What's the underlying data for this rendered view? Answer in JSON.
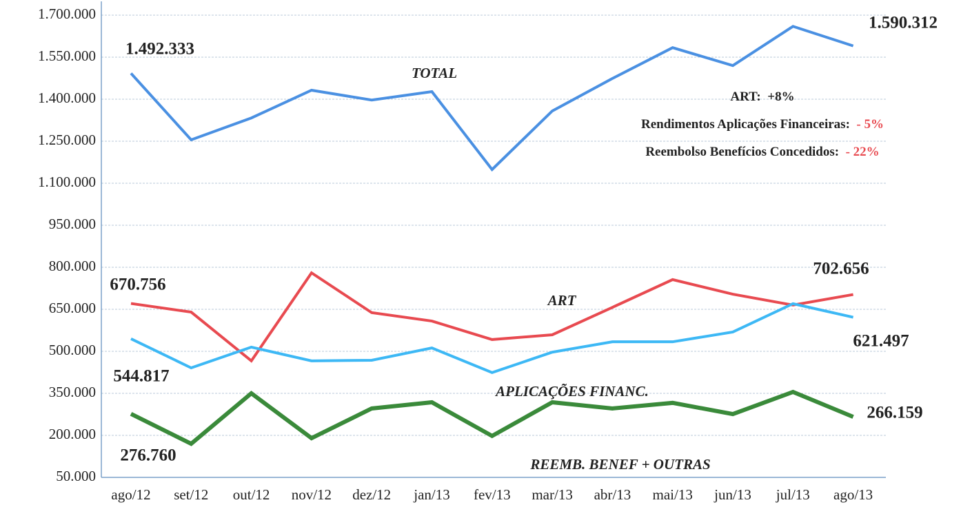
{
  "chart_data": {
    "type": "line",
    "categories": [
      "ago/12",
      "set/12",
      "out/12",
      "nov/12",
      "dez/12",
      "jan/13",
      "fev/13",
      "mar/13",
      "abr/13",
      "mai/13",
      "jun/13",
      "jul/13",
      "ago/13"
    ],
    "series": [
      {
        "name": "TOTAL",
        "color": "#4a90e2",
        "values": [
          1492333,
          1255000,
          1333000,
          1432000,
          1397000,
          1427000,
          1149000,
          1358000,
          1474000,
          1584000,
          1520000,
          1660000,
          1590312
        ],
        "value_labels": [
          "1.492.333",
          null,
          null,
          null,
          null,
          null,
          null,
          null,
          null,
          null,
          null,
          null,
          "1.590.312"
        ]
      },
      {
        "name": "ART",
        "color": "#e84a50",
        "values": [
          670756,
          640000,
          466000,
          780000,
          638000,
          608000,
          542000,
          559000,
          657000,
          756000,
          704000,
          665000,
          702656
        ],
        "value_labels": [
          "670.756",
          null,
          null,
          null,
          null,
          null,
          null,
          null,
          null,
          null,
          null,
          null,
          "702.656"
        ]
      },
      {
        "name": "APLICAÇÕES FINANC.",
        "color": "#3db8f5",
        "values": [
          544817,
          441000,
          515000,
          466000,
          468000,
          512000,
          424000,
          497000,
          534000,
          534000,
          569000,
          670000,
          621497
        ],
        "value_labels": [
          "544.817",
          null,
          null,
          null,
          null,
          null,
          null,
          null,
          null,
          null,
          null,
          null,
          "621.497"
        ]
      },
      {
        "name": "REEMB. BENEF + OUTRAS",
        "color": "#3a8a3a",
        "values": [
          276760,
          170000,
          350000,
          190000,
          296000,
          318000,
          198000,
          318000,
          296000,
          316000,
          276000,
          355000,
          266159
        ],
        "value_labels": [
          "276.760",
          null,
          null,
          null,
          null,
          null,
          null,
          null,
          null,
          null,
          null,
          null,
          "266.159"
        ]
      }
    ],
    "ylim": [
      50000,
      1700000
    ],
    "yticks": [
      {
        "value": 50000,
        "label": "50.000"
      },
      {
        "value": 200000,
        "label": "200.000"
      },
      {
        "value": 350000,
        "label": "350.000"
      },
      {
        "value": 500000,
        "label": "500.000"
      },
      {
        "value": 650000,
        "label": "650.000"
      },
      {
        "value": 800000,
        "label": "800.000"
      },
      {
        "value": 950000,
        "label": "950.000"
      },
      {
        "value": 1100000,
        "label": "1.100.000"
      },
      {
        "value": 1250000,
        "label": "1.250.000"
      },
      {
        "value": 1400000,
        "label": "1.400.000"
      },
      {
        "value": 1550000,
        "label": "1.550.000"
      },
      {
        "value": 1700000,
        "label": "1.700.000"
      }
    ],
    "grid": true,
    "annotations": [
      {
        "label": "ART:",
        "change": "+8%",
        "change_color": "#222222"
      },
      {
        "label": "Rendimentos Aplicações Financeiras:",
        "change": "- 5%",
        "change_color": "#e84a50"
      },
      {
        "label": "Reembolso Benefícios Concedidos:",
        "change": "- 22%",
        "change_color": "#e84a50"
      }
    ]
  }
}
